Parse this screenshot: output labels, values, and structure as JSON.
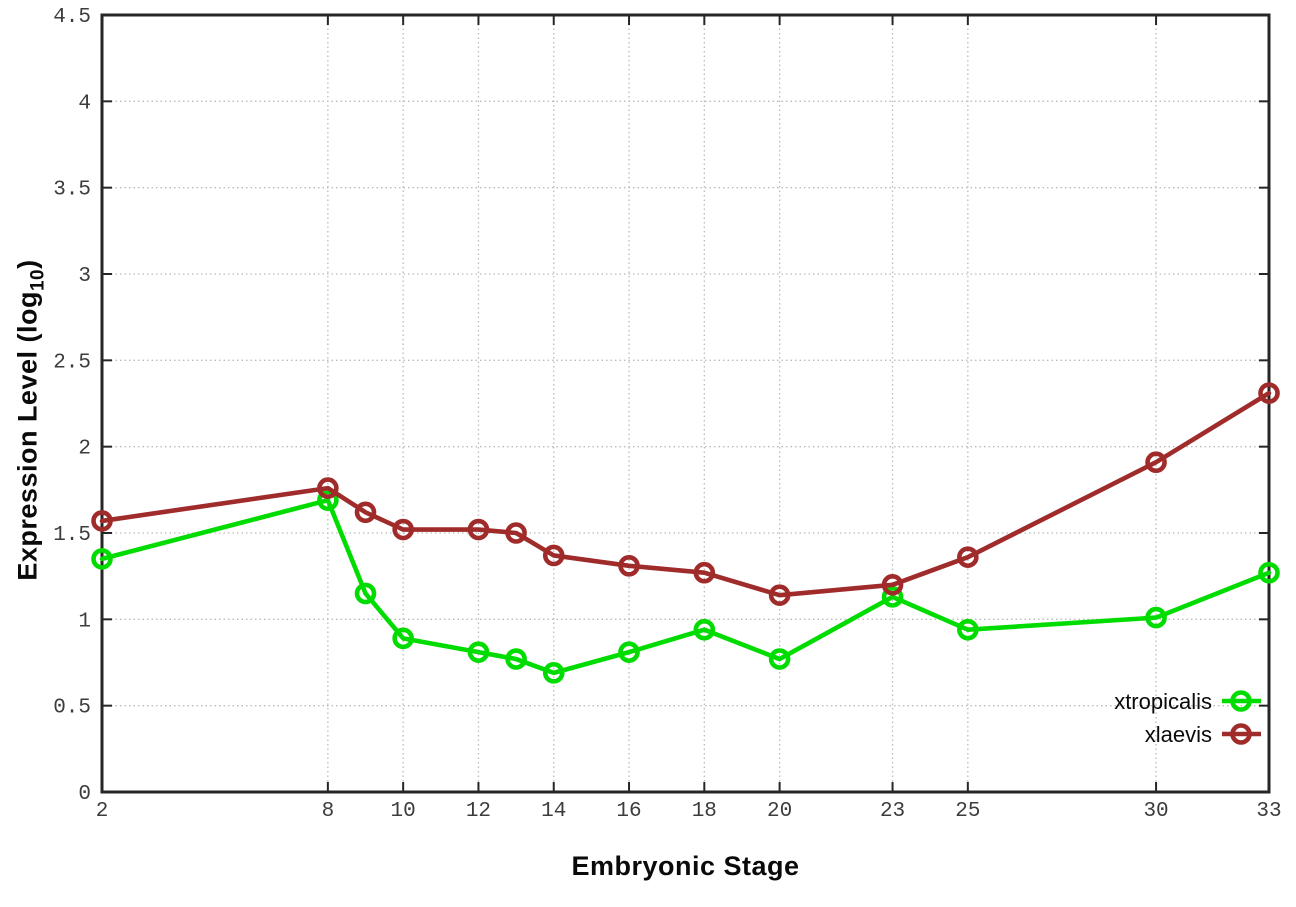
{
  "figure": {
    "xlabel": "Embryonic Stage",
    "ylabel_main": "Expression Level (log",
    "ylabel_sub": "10",
    "ylabel_close": ")"
  },
  "chart_data": {
    "type": "line",
    "title": "",
    "xlabel": "Embryonic Stage",
    "ylabel": "Expression Level (log10)",
    "x": [
      2,
      8,
      9,
      10,
      12,
      13,
      14,
      16,
      18,
      20,
      23,
      25,
      30,
      33
    ],
    "series": [
      {
        "name": "xtropicalis",
        "color": "#00dc00",
        "values": [
          1.35,
          1.69,
          1.15,
          0.89,
          0.81,
          0.77,
          0.69,
          0.81,
          0.94,
          0.77,
          1.13,
          0.94,
          1.01,
          1.27
        ]
      },
      {
        "name": "xlaevis",
        "color": "#a02b2b",
        "values": [
          1.57,
          1.76,
          1.62,
          1.52,
          1.52,
          1.5,
          1.37,
          1.31,
          1.27,
          1.14,
          1.2,
          1.36,
          1.91,
          2.31
        ]
      }
    ],
    "xlim": [
      2,
      33
    ],
    "ylim": [
      0,
      4.5
    ],
    "x_ticks": [
      2,
      8,
      10,
      12,
      14,
      16,
      18,
      20,
      23,
      25,
      30,
      33
    ],
    "y_ticks": [
      0,
      0.5,
      1,
      1.5,
      2,
      2.5,
      3,
      3.5,
      4,
      4.5
    ],
    "grid": true,
    "legend_position": "bottom-right",
    "marker": "open-circle",
    "colors": {
      "background": "#ffffff",
      "border": "#262626",
      "grid": "#bbbbbb",
      "tick_label": "#3c3c3c"
    }
  }
}
